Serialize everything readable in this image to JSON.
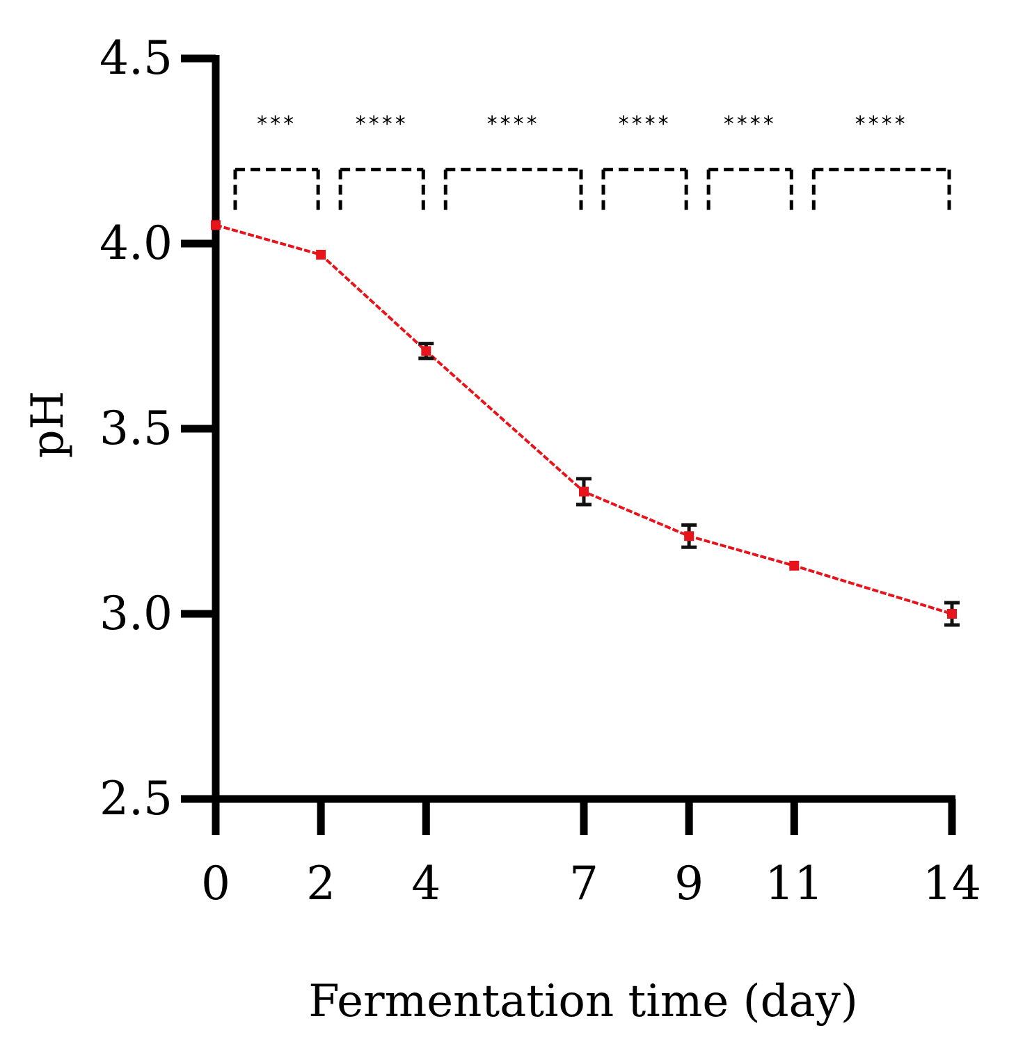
{
  "chart_data": {
    "type": "line",
    "title": "",
    "xlabel": "Fermentation time (day)",
    "ylabel": "pH",
    "xlim": [
      0,
      14
    ],
    "ylim": [
      2.5,
      4.5
    ],
    "x_ticks": [
      "0",
      "2",
      "4",
      "7",
      "9",
      "11",
      "14"
    ],
    "y_ticks": [
      "2.5",
      "3.0",
      "3.5",
      "4.0",
      "4.5"
    ],
    "grid": false,
    "series": [
      {
        "color": "#e8141b",
        "x": [
          0,
          2,
          4,
          7,
          9,
          11,
          14
        ],
        "values": [
          4.05,
          3.97,
          3.71,
          3.33,
          3.21,
          3.13,
          3.0
        ],
        "error": [
          0.0,
          0.0,
          0.02,
          0.035,
          0.03,
          0.0,
          0.03
        ]
      }
    ],
    "significance": [
      {
        "from": 0,
        "to": 2,
        "label": "***"
      },
      {
        "from": 2,
        "to": 4,
        "label": "****"
      },
      {
        "from": 4,
        "to": 7,
        "label": "****"
      },
      {
        "from": 7,
        "to": 9,
        "label": "****"
      },
      {
        "from": 9,
        "to": 11,
        "label": "****"
      },
      {
        "from": 11,
        "to": 14,
        "label": "****"
      }
    ],
    "significance_level": 4.2
  }
}
